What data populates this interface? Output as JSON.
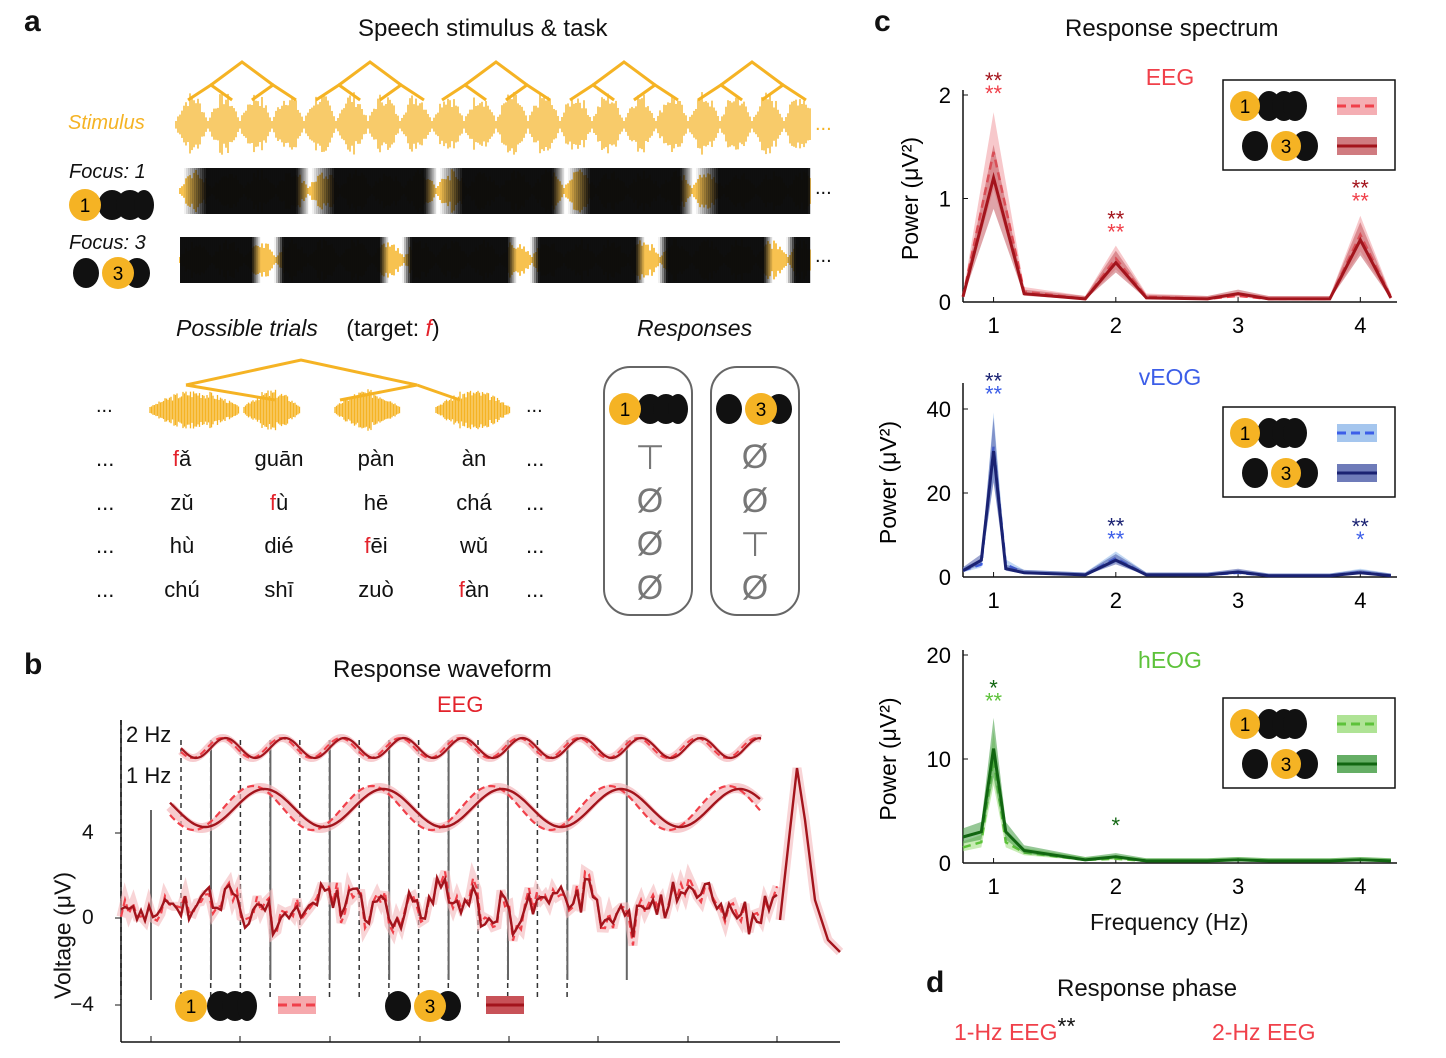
{
  "panel_a": {
    "letter": "a",
    "title": "Speech stimulus & task",
    "stimulus_label": "Stimulus",
    "focus1_label": "Focus: 1",
    "focus3_label": "Focus: 3",
    "ellipsis": "...",
    "possible_trials_label": "Possible trials",
    "target_prefix": "(target: ",
    "target_letter": "f",
    "target_suffix": ")",
    "responses_label": "Responses",
    "badge1": "1",
    "badge3": "3",
    "syllable_rows": [
      {
        "s1_red": "f",
        "s1_rest": "ǎ",
        "s2_red": "",
        "s2_rest": "guān",
        "s3_red": "",
        "s3_rest": "pàn",
        "s4_red": "",
        "s4_rest": "àn",
        "resp1": "⊤",
        "resp3": "Ø"
      },
      {
        "s1_red": "",
        "s1_rest": "zǔ",
        "s2_red": "f",
        "s2_rest": "ù",
        "s3_red": "",
        "s3_rest": "hē",
        "s4_red": "",
        "s4_rest": "chá",
        "resp1": "Ø",
        "resp3": "Ø"
      },
      {
        "s1_red": "",
        "s1_rest": "hù",
        "s2_red": "",
        "s2_rest": "dié",
        "s3_red": "f",
        "s3_rest": "ēi",
        "s4_red": "",
        "s4_rest": "wǔ",
        "resp1": "Ø",
        "resp3": "⊤"
      },
      {
        "s1_red": "",
        "s1_rest": "chú",
        "s2_red": "",
        "s2_rest": "shī",
        "s3_red": "",
        "s3_rest": "zuò",
        "s4_red": "f",
        "s4_rest": "àn",
        "resp1": "Ø",
        "resp3": "Ø"
      }
    ]
  },
  "panel_b": {
    "letter": "b",
    "title": "Response waveform",
    "modality": "EEG",
    "label_2hz": "2 Hz",
    "label_1hz": "1 Hz",
    "ylabel": "Voltage (μV)",
    "yticks": [
      "4",
      "0",
      "−4"
    ]
  },
  "panel_c": {
    "letter": "c",
    "title": "Response spectrum",
    "xlabel": "Frequency (Hz)",
    "xticks": [
      "1",
      "2",
      "3",
      "4"
    ],
    "ylabel": "Power (μV²)"
  },
  "panel_d": {
    "letter": "d",
    "title": "Response phase",
    "label_1hz": "1-Hz EEG",
    "label_1hz_stars": "**",
    "label_2hz": "2-Hz EEG"
  },
  "colors": {
    "stimulus_orange": "#f5b324",
    "eeg_light": "#f0404a",
    "eeg_dark": "#a3141c",
    "veog_light": "#3c5ee8",
    "veog_dark": "#1a2272",
    "heog_light": "#5dc23a",
    "heog_dark": "#116611"
  },
  "chart_data": [
    {
      "type": "line",
      "title": "EEG",
      "x": [
        0.75,
        1,
        1.25,
        1.75,
        2,
        2.25,
        2.75,
        3,
        3.25,
        3.75,
        4,
        4.25
      ],
      "xlim": [
        0.75,
        4.3
      ],
      "ylim": [
        0,
        2
      ],
      "yticks": [
        "0",
        "1",
        "2"
      ],
      "series": [
        {
          "values": [
            0.05,
            1.45,
            0.1,
            0.03,
            0.42,
            0.05,
            0.03,
            0.06,
            0.03,
            0.03,
            0.65,
            0.05
          ]
        },
        {
          "values": [
            0.05,
            1.2,
            0.08,
            0.03,
            0.38,
            0.04,
            0.03,
            0.08,
            0.03,
            0.03,
            0.6,
            0.04
          ]
        }
      ],
      "stars": [
        {
          "x": 1,
          "dark": "**",
          "light": "**"
        },
        {
          "x": 2,
          "dark": "**",
          "light": "**"
        },
        {
          "x": 4,
          "dark": "**",
          "light": "**"
        }
      ]
    },
    {
      "type": "line",
      "title": "vEOG",
      "x": [
        0.75,
        0.9,
        1,
        1.1,
        1.25,
        1.75,
        2,
        2.25,
        2.75,
        3,
        3.25,
        3.75,
        4,
        4.25
      ],
      "xlim": [
        0.75,
        4.3
      ],
      "ylim": [
        0,
        45
      ],
      "yticks": [
        "0",
        "20",
        "40"
      ],
      "series": [
        {
          "values": [
            1.5,
            3,
            31,
            3,
            1,
            0.5,
            4.5,
            0.5,
            0.5,
            1,
            0.3,
            0.3,
            1.2,
            0.3
          ]
        },
        {
          "values": [
            1.5,
            4,
            30,
            2,
            1,
            0.5,
            4,
            0.5,
            0.5,
            1.2,
            0.3,
            0.3,
            1.0,
            0.3
          ]
        }
      ],
      "stars": [
        {
          "x": 1,
          "dark": "**",
          "light": "**"
        },
        {
          "x": 2,
          "dark": "**",
          "light": "**"
        },
        {
          "x": 4,
          "dark": "**",
          "light": "*"
        }
      ]
    },
    {
      "type": "line",
      "title": "hEOG",
      "x": [
        0.75,
        0.9,
        1,
        1.1,
        1.25,
        1.75,
        2,
        2.25,
        2.75,
        3,
        3.25,
        3.75,
        4,
        4.25
      ],
      "xlim": [
        0.75,
        4.3
      ],
      "ylim": [
        0,
        20
      ],
      "yticks": [
        "0",
        "10",
        "20"
      ],
      "series": [
        {
          "values": [
            1.5,
            2,
            10,
            2,
            1,
            0.3,
            0.4,
            0.2,
            0.2,
            0.3,
            0.2,
            0.2,
            0.3,
            0.2
          ]
        },
        {
          "values": [
            2.5,
            3,
            11,
            3,
            1.2,
            0.3,
            0.6,
            0.2,
            0.2,
            0.3,
            0.2,
            0.2,
            0.3,
            0.2
          ]
        }
      ],
      "stars": [
        {
          "x": 1,
          "dark": "*",
          "light": "**"
        },
        {
          "x": 2,
          "dark": "*",
          "light": ""
        }
      ]
    }
  ]
}
